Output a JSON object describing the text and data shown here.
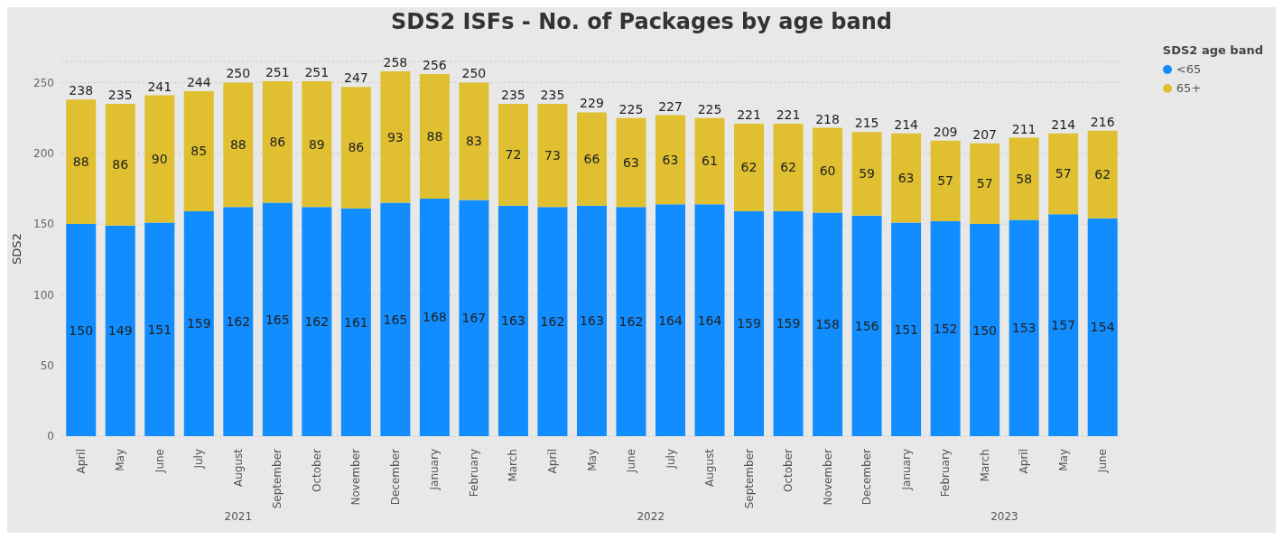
{
  "chart_data": {
    "type": "bar",
    "title": "SDS2 ISFs - No. of Packages by age band",
    "ylabel": "SDS2",
    "legend_title": "SDS2 age band",
    "categories": [
      "April",
      "May",
      "June",
      "July",
      "August",
      "September",
      "October",
      "November",
      "December",
      "January",
      "February",
      "March",
      "April",
      "May",
      "June",
      "July",
      "August",
      "September",
      "October",
      "November",
      "December",
      "January",
      "February",
      "March",
      "April",
      "May",
      "June"
    ],
    "series": [
      {
        "name": "<65",
        "color": "#118dff",
        "values": [
          150,
          149,
          151,
          159,
          162,
          165,
          162,
          161,
          165,
          168,
          167,
          163,
          162,
          163,
          162,
          164,
          164,
          159,
          159,
          158,
          156,
          151,
          152,
          150,
          153,
          157,
          154
        ]
      },
      {
        "name": "65+",
        "color": "#e0c030",
        "values": [
          88,
          86,
          90,
          85,
          88,
          86,
          89,
          86,
          93,
          88,
          83,
          72,
          73,
          66,
          63,
          63,
          61,
          62,
          62,
          60,
          59,
          63,
          57,
          57,
          58,
          57,
          62
        ]
      }
    ],
    "stacked": true,
    "data_labels": true,
    "totals": [
      "238",
      "235",
      "241",
      "244",
      "250",
      "251",
      "251",
      "247",
      "258",
      "256",
      "250",
      "235",
      "235",
      "229",
      "225",
      "227",
      "225",
      "221",
      "221",
      "218",
      "215",
      "214",
      "209",
      "207",
      "211",
      "214",
      "216"
    ],
    "ylim": [
      0,
      265
    ],
    "yticks": [
      0,
      50,
      100,
      150,
      200,
      250
    ],
    "grid": "y",
    "legend": "top right",
    "annotations": [
      "2021",
      "2022",
      "2023"
    ]
  }
}
